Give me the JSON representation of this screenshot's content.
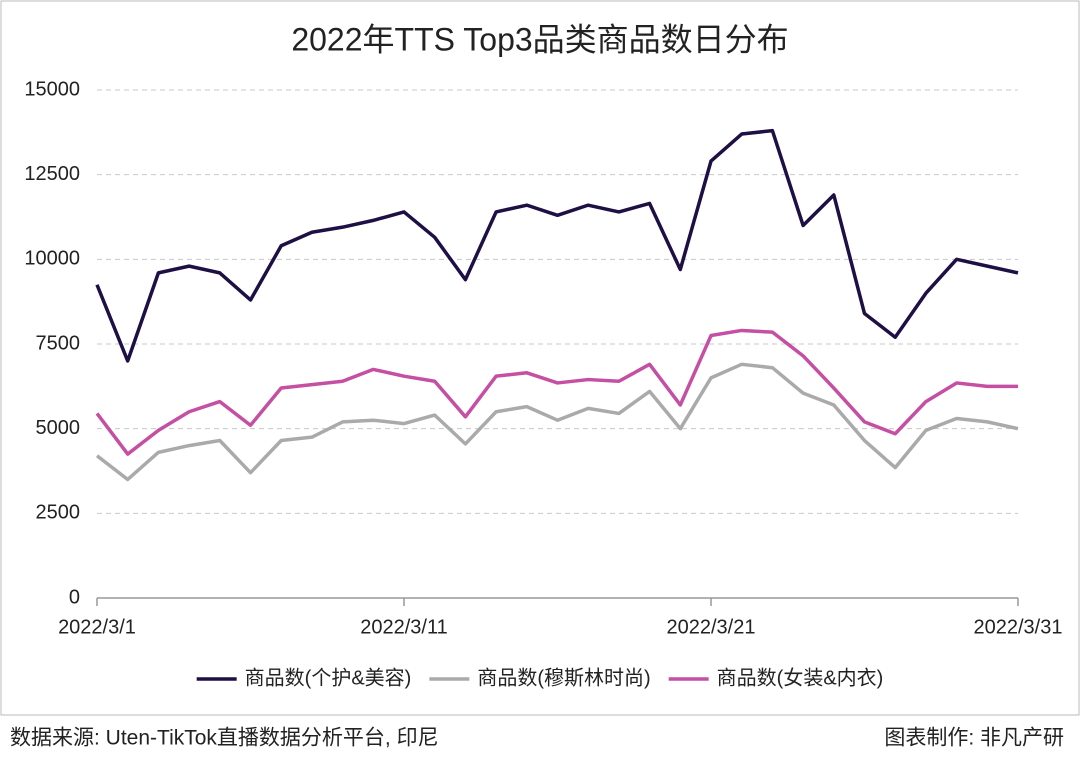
{
  "chart_data": {
    "type": "line",
    "title": "2022年TTS Top3品类商品数日分布",
    "categories": [
      "2022/3/1",
      null,
      null,
      null,
      null,
      null,
      null,
      null,
      null,
      null,
      "2022/3/11",
      null,
      null,
      null,
      null,
      null,
      null,
      null,
      null,
      null,
      "2022/3/21",
      null,
      null,
      null,
      null,
      null,
      null,
      null,
      null,
      null,
      "2022/3/31"
    ],
    "series": [
      {
        "name": "商品数(个护&美容)",
        "color": "#1e0f45",
        "values": [
          9250,
          7000,
          9600,
          9800,
          9600,
          8800,
          10400,
          10800,
          10950,
          11150,
          11400,
          10650,
          9400,
          11400,
          11600,
          11300,
          11600,
          11400,
          11650,
          9700,
          12900,
          13700,
          13800,
          11000,
          11900,
          8400,
          7700,
          9000,
          10000,
          9800,
          9600
        ]
      },
      {
        "name": "商品数(穆斯林时尚)",
        "color": "#aaaaaa",
        "values": [
          4200,
          3500,
          4300,
          4500,
          4650,
          3700,
          4650,
          4750,
          5200,
          5250,
          5150,
          5400,
          4550,
          5500,
          5650,
          5250,
          5600,
          5450,
          6100,
          5000,
          6500,
          6900,
          6800,
          6050,
          5700,
          4650,
          3850,
          4950,
          5300,
          5200,
          5000
        ]
      },
      {
        "name": "商品数(女装&内衣)",
        "color": "#c44fa3",
        "values": [
          5450,
          4250,
          4950,
          5500,
          5800,
          5100,
          6200,
          6300,
          6400,
          6750,
          6550,
          6400,
          5350,
          6550,
          6650,
          6350,
          6450,
          6400,
          6900,
          5700,
          7750,
          7900,
          7850,
          7150,
          6200,
          5200,
          4850,
          5800,
          6350,
          6250,
          6250
        ]
      }
    ],
    "ylim": [
      0,
      15000
    ],
    "yticks": [
      0,
      2500,
      5000,
      7500,
      10000,
      12500,
      15000
    ],
    "grid": true,
    "legend": "bottom"
  },
  "footer": {
    "source": "数据来源: Uten-TikTok直播数据分析平台, 印尼",
    "credit": "图表制作: 非凡产研"
  }
}
